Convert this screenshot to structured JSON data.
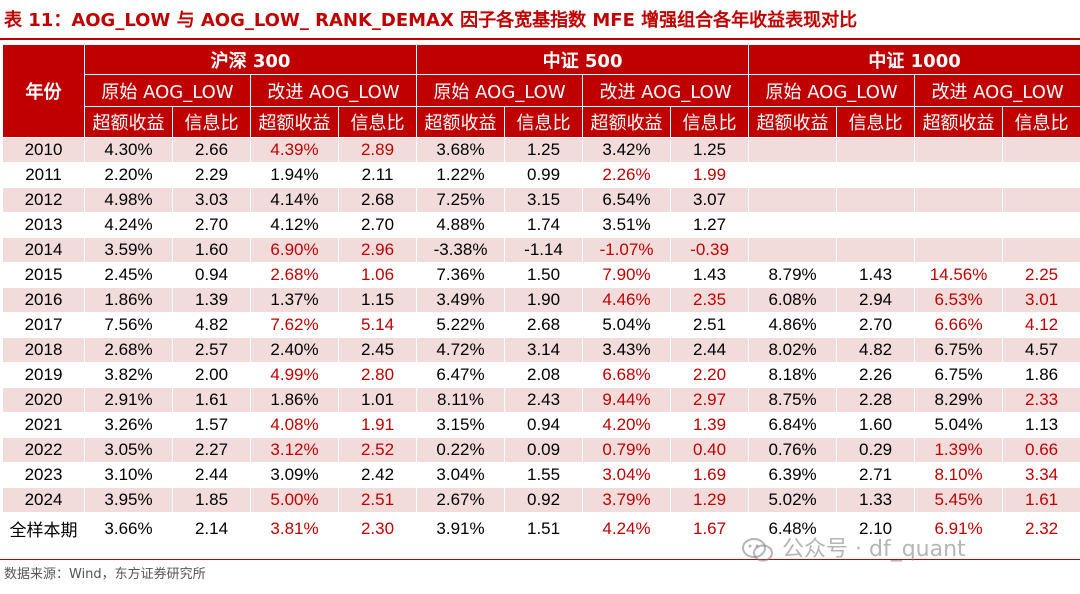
{
  "title": "表 11：AOG_LOW 与 AOG_LOW_ RANK_DEMAX 因子各宽基指数 MFE 增强组合各年收益表现对比",
  "header": {
    "year_label": "年份",
    "groups": [
      "沪深 300",
      "中证 500",
      "中证 1000"
    ],
    "subgroups": [
      "原始 AOG_LOW",
      "改进 AOG_LOW"
    ],
    "metrics": [
      "超额收益",
      "信息比"
    ]
  },
  "rows": [
    {
      "year": "2010",
      "cells": [
        "4.30%",
        "2.66",
        "4.39%",
        "2.89",
        "3.68%",
        "1.25",
        "3.42%",
        "1.25",
        "",
        "",
        "",
        ""
      ],
      "red": [
        2,
        3
      ]
    },
    {
      "year": "2011",
      "cells": [
        "2.20%",
        "2.29",
        "1.94%",
        "2.11",
        "1.22%",
        "0.99",
        "2.26%",
        "1.99",
        "",
        "",
        "",
        ""
      ],
      "red": [
        6,
        7
      ]
    },
    {
      "year": "2012",
      "cells": [
        "4.98%",
        "3.03",
        "4.14%",
        "2.68",
        "7.25%",
        "3.15",
        "6.54%",
        "3.07",
        "",
        "",
        "",
        ""
      ],
      "red": []
    },
    {
      "year": "2013",
      "cells": [
        "4.24%",
        "2.70",
        "4.12%",
        "2.70",
        "4.88%",
        "1.74",
        "3.51%",
        "1.27",
        "",
        "",
        "",
        ""
      ],
      "red": []
    },
    {
      "year": "2014",
      "cells": [
        "3.59%",
        "1.60",
        "6.90%",
        "2.96",
        "-3.38%",
        "-1.14",
        "-1.07%",
        "-0.39",
        "",
        "",
        "",
        ""
      ],
      "red": [
        2,
        3,
        6,
        7
      ]
    },
    {
      "year": "2015",
      "cells": [
        "2.45%",
        "0.94",
        "2.68%",
        "1.06",
        "7.36%",
        "1.50",
        "7.90%",
        "1.43",
        "8.79%",
        "1.43",
        "14.56%",
        "2.25"
      ],
      "red": [
        2,
        3,
        6,
        10,
        11
      ]
    },
    {
      "year": "2016",
      "cells": [
        "1.86%",
        "1.39",
        "1.37%",
        "1.15",
        "3.49%",
        "1.90",
        "4.46%",
        "2.35",
        "6.08%",
        "2.94",
        "6.53%",
        "3.01"
      ],
      "red": [
        6,
        7,
        10,
        11
      ]
    },
    {
      "year": "2017",
      "cells": [
        "7.56%",
        "4.82",
        "7.62%",
        "5.14",
        "5.22%",
        "2.68",
        "5.04%",
        "2.51",
        "4.86%",
        "2.70",
        "6.66%",
        "4.12"
      ],
      "red": [
        2,
        3,
        10,
        11
      ]
    },
    {
      "year": "2018",
      "cells": [
        "2.68%",
        "2.57",
        "2.40%",
        "2.45",
        "4.72%",
        "3.14",
        "3.43%",
        "2.44",
        "8.02%",
        "4.82",
        "6.75%",
        "4.57"
      ],
      "red": []
    },
    {
      "year": "2019",
      "cells": [
        "3.82%",
        "2.00",
        "4.99%",
        "2.80",
        "6.47%",
        "2.08",
        "6.68%",
        "2.20",
        "8.18%",
        "2.26",
        "6.75%",
        "1.86"
      ],
      "red": [
        2,
        3,
        6,
        7
      ]
    },
    {
      "year": "2020",
      "cells": [
        "2.91%",
        "1.61",
        "1.86%",
        "1.01",
        "8.11%",
        "2.43",
        "9.44%",
        "2.97",
        "8.75%",
        "2.28",
        "8.29%",
        "2.33"
      ],
      "red": [
        6,
        7,
        11
      ]
    },
    {
      "year": "2021",
      "cells": [
        "3.26%",
        "1.57",
        "4.08%",
        "1.91",
        "3.15%",
        "0.94",
        "4.20%",
        "1.39",
        "6.84%",
        "1.60",
        "5.04%",
        "1.13"
      ],
      "red": [
        2,
        3,
        6,
        7
      ]
    },
    {
      "year": "2022",
      "cells": [
        "3.05%",
        "2.27",
        "3.12%",
        "2.52",
        "0.22%",
        "0.09",
        "0.79%",
        "0.40",
        "0.76%",
        "0.29",
        "1.39%",
        "0.66"
      ],
      "red": [
        2,
        3,
        6,
        7,
        10,
        11
      ]
    },
    {
      "year": "2023",
      "cells": [
        "3.10%",
        "2.44",
        "3.09%",
        "2.42",
        "3.04%",
        "1.55",
        "3.04%",
        "1.69",
        "6.39%",
        "2.71",
        "8.10%",
        "3.34"
      ],
      "red": [
        6,
        7,
        10,
        11
      ]
    },
    {
      "year": "2024",
      "cells": [
        "3.95%",
        "1.85",
        "5.00%",
        "2.51",
        "2.67%",
        "0.92",
        "3.79%",
        "1.29",
        "5.02%",
        "1.33",
        "5.45%",
        "1.61"
      ],
      "red": [
        2,
        3,
        6,
        7,
        10,
        11
      ]
    },
    {
      "year": "全样本期",
      "cells": [
        "3.66%",
        "2.14",
        "3.81%",
        "2.30",
        "3.91%",
        "1.51",
        "4.24%",
        "1.67",
        "6.48%",
        "2.10",
        "6.91%",
        "2.32"
      ],
      "red": [
        2,
        3,
        6,
        7,
        10,
        11
      ]
    }
  ],
  "source": "数据来源：Wind，东方证券研究所",
  "watermark": "公众号 · df_quant",
  "colors": {
    "accent": "#c00000",
    "stripe": "#f2dcdb"
  }
}
